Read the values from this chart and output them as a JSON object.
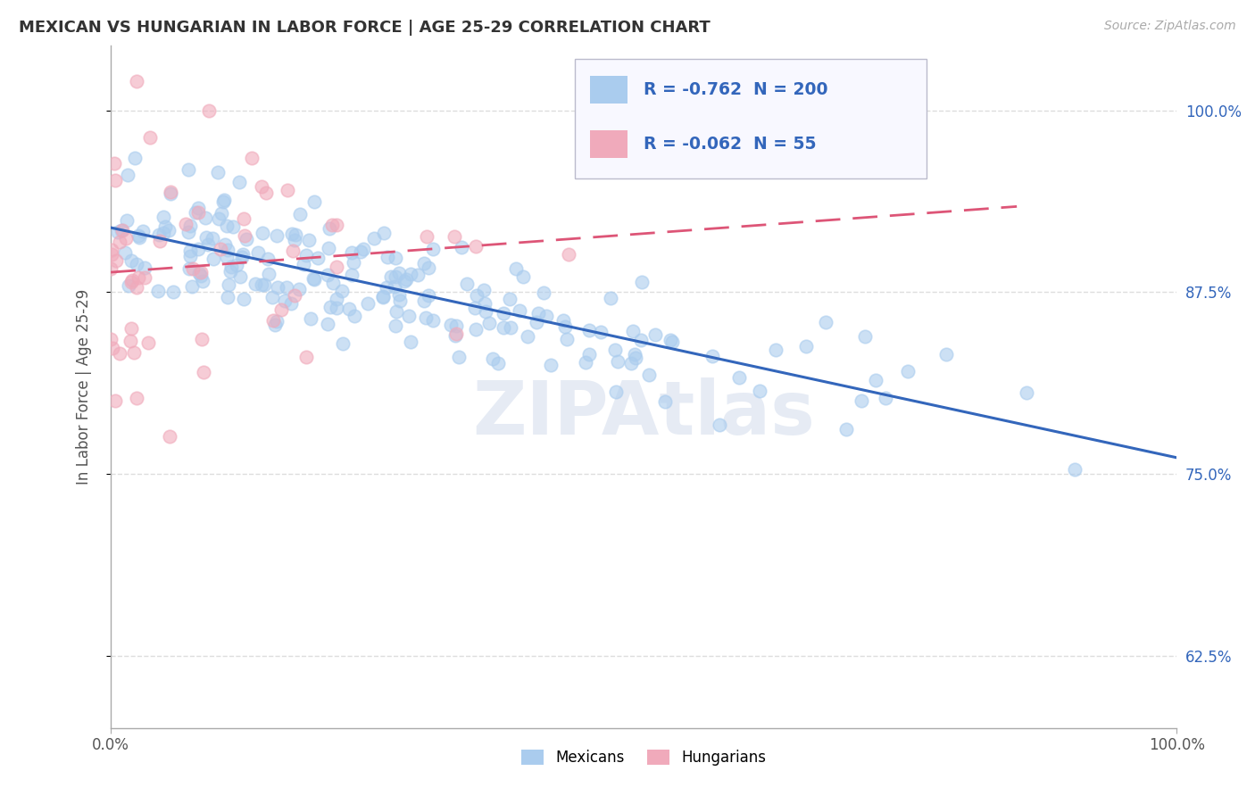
{
  "title": "MEXICAN VS HUNGARIAN IN LABOR FORCE | AGE 25-29 CORRELATION CHART",
  "source": "Source: ZipAtlas.com",
  "ylabel": "In Labor Force | Age 25-29",
  "xlim": [
    0.0,
    1.0
  ],
  "ylim": [
    0.575,
    1.045
  ],
  "yticks": [
    0.625,
    0.75,
    0.875,
    1.0
  ],
  "ytick_labels": [
    "62.5%",
    "75.0%",
    "87.5%",
    "100.0%"
  ],
  "xticks": [
    0.0,
    1.0
  ],
  "xtick_labels": [
    "0.0%",
    "100.0%"
  ],
  "corr_mexican": -0.762,
  "n_mexican": 200,
  "corr_hungarian": -0.062,
  "n_hungarian": 55,
  "watermark": "ZIPAtlas",
  "background_color": "#ffffff",
  "grid_color": "#dddddd",
  "mexican_color": "#aaccee",
  "hungarian_color": "#f0aabb",
  "mexican_line_color": "#3366bb",
  "hungarian_line_color": "#dd5577",
  "title_fontsize": 13,
  "legend_text_color": "#3366bb",
  "legend_box_color": "#f8f8ff",
  "legend_border_color": "#bbbbcc",
  "seed": 42
}
